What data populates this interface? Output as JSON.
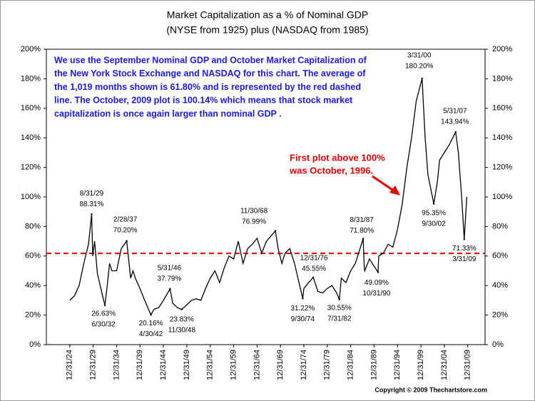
{
  "chart_data": {
    "type": "line",
    "title": [
      "Market Capitalization as a % of Nominal GDP",
      "(NYSE from 1925) plus (NASDAQ from 1985)"
    ],
    "description": [
      "We use the September Nominal GDP and October Market Capitalization of",
      "the New York Stock Exchange and NASDAQ for this chart.  The average of",
      "the 1,019 months shown is 61.80% and is represented by the red dashed",
      "line.  The October, 2009 plot is 100.14% which means that stock market",
      "capitalization is once again larger than nominal GDP ."
    ],
    "callout": [
      "First plot above 100%",
      "was October, 1996."
    ],
    "copyright": "Copyright © 2009 Thechartstore.com",
    "xlim": [
      1920,
      2013.7
    ],
    "xticks": [
      {
        "value": 1925,
        "label": "12/31/24"
      },
      {
        "value": 1930,
        "label": "12/31/29"
      },
      {
        "value": 1935,
        "label": "12/31/34"
      },
      {
        "value": 1940,
        "label": "12/31/39"
      },
      {
        "value": 1945,
        "label": "12/31/44"
      },
      {
        "value": 1950,
        "label": "12/31/49"
      },
      {
        "value": 1955,
        "label": "12/31/54"
      },
      {
        "value": 1960,
        "label": "12/31/59"
      },
      {
        "value": 1965,
        "label": "12/31/64"
      },
      {
        "value": 1970,
        "label": "12/31/69"
      },
      {
        "value": 1975,
        "label": "12/31/74"
      },
      {
        "value": 1980,
        "label": "12/31/79"
      },
      {
        "value": 1985,
        "label": "12/31/84"
      },
      {
        "value": 1990,
        "label": "12/31/89"
      },
      {
        "value": 1995,
        "label": "12/31/94"
      },
      {
        "value": 2000,
        "label": "12/31/99"
      },
      {
        "value": 2005,
        "label": "12/31/04"
      },
      {
        "value": 2010,
        "label": "12/31/09"
      }
    ],
    "ylim": [
      0,
      200
    ],
    "yticks": [
      {
        "value": 0,
        "label": "0%"
      },
      {
        "value": 20,
        "label": "20%"
      },
      {
        "value": 40,
        "label": "40%"
      },
      {
        "value": 60,
        "label": "60%"
      },
      {
        "value": 80,
        "label": "80%"
      },
      {
        "value": 100,
        "label": "100%"
      },
      {
        "value": 120,
        "label": "120%"
      },
      {
        "value": 140,
        "label": "140%"
      },
      {
        "value": 160,
        "label": "160%"
      },
      {
        "value": 180,
        "label": "180%"
      },
      {
        "value": 200,
        "label": "200%"
      }
    ],
    "y2lim": [
      0,
      200
    ],
    "y2ticks": [
      {
        "value": 0,
        "label": "0%"
      },
      {
        "value": 20,
        "label": "20%"
      },
      {
        "value": 40,
        "label": "40%"
      },
      {
        "value": 60,
        "label": "60%"
      },
      {
        "value": 80,
        "label": "80%"
      },
      {
        "value": 100,
        "label": "100%"
      },
      {
        "value": 120,
        "label": "120%"
      },
      {
        "value": 140,
        "label": "140%"
      },
      {
        "value": 160,
        "label": "160%"
      },
      {
        "value": 180,
        "label": "180%"
      },
      {
        "value": 200,
        "label": "200%"
      }
    ],
    "grid": false,
    "average_line": {
      "value": 61.8,
      "color": "#e60000"
    },
    "series": [
      {
        "color": "#000000",
        "x": [
          1925.0,
          1926.0,
          1927.0,
          1928.0,
          1929.0,
          1929.67,
          1929.9,
          1930.3,
          1930.9,
          1931.5,
          1932.0,
          1932.5,
          1933.0,
          1933.5,
          1934.0,
          1935.0,
          1936.0,
          1937.16,
          1937.5,
          1938.0,
          1938.5,
          1939.0,
          1940.0,
          1941.0,
          1942.33,
          1943.0,
          1944.0,
          1945.0,
          1946.42,
          1947.0,
          1948.0,
          1948.92,
          1950.0,
          1951.0,
          1952.0,
          1953.0,
          1954.0,
          1955.0,
          1956.0,
          1957.0,
          1958.0,
          1959.0,
          1960.0,
          1961.0,
          1962.0,
          1963.0,
          1964.0,
          1965.0,
          1966.0,
          1967.0,
          1968.92,
          1969.5,
          1970.3,
          1971.0,
          1972.0,
          1973.0,
          1974.75,
          1975.0,
          1976.0,
          1977.0,
          1978.0,
          1979.0,
          1980.0,
          1981.0,
          1982.0,
          1982.58,
          1983.0,
          1984.0,
          1985.0,
          1986.0,
          1987.67,
          1987.9,
          1988.0,
          1989.0,
          1990.83,
          1991.0,
          1992.0,
          1993.0,
          1994.0,
          1995.0,
          1996.0,
          1997.0,
          1998.0,
          1999.0,
          2000.25,
          2000.9,
          2001.5,
          2002.75,
          2003.5,
          2004.0,
          2005.0,
          2006.0,
          2007.42,
          2008.0,
          2008.7,
          2009.25,
          2009.8
        ],
        "values": [
          30,
          33,
          40,
          55,
          68,
          88.31,
          60,
          70,
          48,
          40,
          33,
          26.63,
          40,
          55,
          50,
          50,
          65,
          70.2,
          60,
          45,
          50,
          45,
          38,
          30,
          20.16,
          24,
          25,
          30,
          37.79,
          28,
          25,
          23.83,
          27,
          30,
          31,
          30,
          38,
          45,
          50,
          42,
          52,
          60,
          58,
          70,
          55,
          65,
          68,
          72,
          62,
          70,
          76.99,
          65,
          55,
          62,
          65,
          55,
          31.22,
          38,
          42,
          45.55,
          36,
          35,
          38,
          40,
          35,
          30.55,
          45,
          42,
          50,
          55,
          71.8,
          52,
          50,
          58,
          49.09,
          60,
          62,
          68,
          66,
          78,
          95,
          120,
          140,
          165,
          180.2,
          140,
          115,
          95.35,
          110,
          125,
          130,
          135,
          143.94,
          130,
          100,
          71.33,
          100.14
        ]
      }
    ],
    "annotations": [
      {
        "x": 1929.67,
        "value": 88.31,
        "date": "8/31/29",
        "label": "88.31%"
      },
      {
        "x": 1932.5,
        "value": 26.63,
        "date": "6/30/32",
        "label": "26.63%"
      },
      {
        "x": 1937.16,
        "value": 70.2,
        "date": "2/28/37",
        "label": "70.20%"
      },
      {
        "x": 1942.33,
        "value": 20.16,
        "date": "4/30/42",
        "label": "20.16%"
      },
      {
        "x": 1946.42,
        "value": 37.79,
        "date": "5/31/46",
        "label": "37.79%"
      },
      {
        "x": 1948.92,
        "value": 23.83,
        "date": "11/30/48",
        "label": "23.83%"
      },
      {
        "x": 1968.92,
        "value": 76.99,
        "date": "11/30/68",
        "label": "76.99%"
      },
      {
        "x": 1974.75,
        "value": 31.22,
        "date": "9/30/74",
        "label": "31.22%"
      },
      {
        "x": 1977.0,
        "value": 45.55,
        "date": "12/31/76",
        "label": "45.55%"
      },
      {
        "x": 1982.58,
        "value": 30.55,
        "date": "7/31/82",
        "label": "30.55%"
      },
      {
        "x": 1987.67,
        "value": 71.8,
        "date": "8/31/87",
        "label": "71.80%"
      },
      {
        "x": 1990.83,
        "value": 49.09,
        "date": "10/31/90",
        "label": "49.09%"
      },
      {
        "x": 2000.25,
        "value": 180.2,
        "date": "3/31/00",
        "label": "180.20%"
      },
      {
        "x": 2002.75,
        "value": 95.35,
        "date": "9/30/02",
        "label": "95.35%"
      },
      {
        "x": 2007.42,
        "value": 143.94,
        "date": "5/31/07",
        "label": "143.94%"
      },
      {
        "x": 2009.25,
        "value": 71.33,
        "date": "3/31/09",
        "label": "71.33%"
      }
    ]
  }
}
